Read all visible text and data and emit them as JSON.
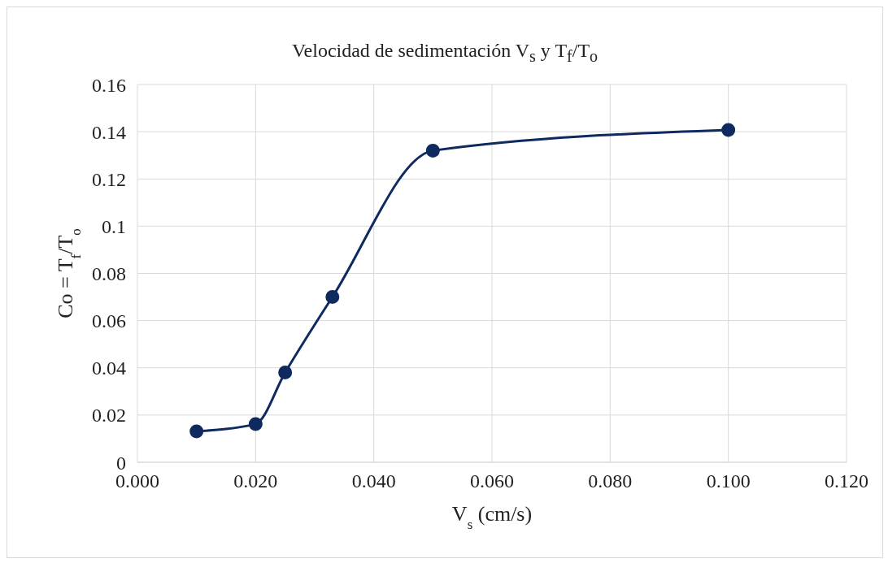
{
  "chart_data": {
    "type": "line",
    "title": "Velocidad de sedimentación  V$_{s}$ y T$_{f}$/T$_{o}$",
    "xlabel": "V$_{s}$ (cm/s)",
    "ylabel": "Co = T$_{f}$/T$_{o}$",
    "x": [
      0.01,
      0.02,
      0.025,
      0.033,
      0.05,
      0.1
    ],
    "series": [
      {
        "color": "#0e2a5f",
        "values": [
          0.0131,
          0.0162,
          0.038,
          0.07,
          0.132,
          0.1407
        ]
      }
    ],
    "xlim": [
      0,
      0.12
    ],
    "xticks": [
      {
        "value": 0,
        "label": "0.000"
      },
      {
        "value": 0.02,
        "label": "0.020"
      },
      {
        "value": 0.04,
        "label": "0.040"
      },
      {
        "value": 0.06,
        "label": "0.060"
      },
      {
        "value": 0.08,
        "label": "0.080"
      },
      {
        "value": 0.1,
        "label": "0.100"
      },
      {
        "value": 0.12,
        "label": "0.120"
      }
    ],
    "ylim": [
      0,
      0.16
    ],
    "yticks": [
      0,
      0.02,
      0.04,
      0.06,
      0.08,
      0.1,
      0.12,
      0.14,
      0.16
    ],
    "grid": true,
    "marker": "circle",
    "line_style": "solid",
    "legend": false
  }
}
